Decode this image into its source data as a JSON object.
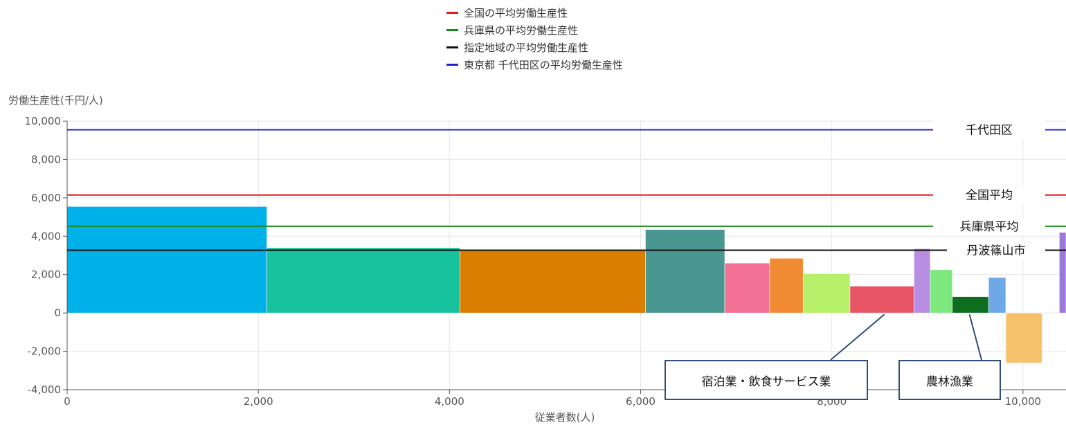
{
  "legend": [
    {
      "label": "全国の平均労働生産性",
      "color": "#e31a1c"
    },
    {
      "label": "兵庫県の平均労働生産性",
      "color": "#1a8a1a"
    },
    {
      "label": "指定地域の平均労働生産性",
      "color": "#111111"
    },
    {
      "label": "東京都 千代田区の平均労働生産性",
      "color": "#1f1fcc"
    }
  ],
  "chart_data": {
    "type": "bar",
    "subtype": "variable-width (marimekko)",
    "xlabel": "従業者数(人)",
    "ylabel": "労働生産性(千円/人)",
    "xlim": [
      0,
      10450
    ],
    "ylim": [
      -4000,
      10000
    ],
    "xticks": [
      0,
      2000,
      4000,
      6000,
      8000,
      10000
    ],
    "xtick_labels": [
      "0",
      "2,000",
      "4,000",
      "6,000",
      "8,000",
      "10,000"
    ],
    "yticks": [
      -4000,
      -2000,
      0,
      2000,
      4000,
      6000,
      8000,
      10000
    ],
    "ytick_labels": [
      "-4,000",
      "-2,000",
      "0",
      "2,000",
      "4,000",
      "6,000",
      "8,000",
      "10,000"
    ],
    "grid": true,
    "legend_position": "top-center",
    "bars": [
      {
        "x0": 0,
        "x1": 2090,
        "value": 5550,
        "color": "#00b0e8"
      },
      {
        "x0": 2090,
        "x1": 4110,
        "value": 3400,
        "color": "#17c39f"
      },
      {
        "x0": 4110,
        "x1": 6050,
        "value": 3250,
        "color": "#d97e00"
      },
      {
        "x0": 6050,
        "x1": 6880,
        "value": 4350,
        "color": "#4a9690"
      },
      {
        "x0": 6880,
        "x1": 7350,
        "value": 2600,
        "color": "#f27195"
      },
      {
        "x0": 7350,
        "x1": 7700,
        "value": 2850,
        "color": "#f08b33"
      },
      {
        "x0": 7700,
        "x1": 8190,
        "value": 2050,
        "color": "#b6f06a"
      },
      {
        "x0": 8190,
        "x1": 8860,
        "value": 1400,
        "color": "#e85566"
      },
      {
        "x0": 8860,
        "x1": 9030,
        "value": 3350,
        "color": "#b88ee2"
      },
      {
        "x0": 9030,
        "x1": 9260,
        "value": 2250,
        "color": "#7de87d"
      },
      {
        "x0": 9260,
        "x1": 9640,
        "value": 850,
        "color": "#0c6e1e"
      },
      {
        "x0": 9640,
        "x1": 9820,
        "value": 1850,
        "color": "#6fa8e6"
      },
      {
        "x0": 9820,
        "x1": 10200,
        "value": -2600,
        "color": "#f5c26b"
      },
      {
        "x0": 10380,
        "x1": 10450,
        "value": 4200,
        "color": "#9b79d9"
      }
    ],
    "reference_lines": [
      {
        "name": "東京都 千代田区の平均労働生産性",
        "value": 9550,
        "color": "#1f1fcc",
        "label": "千代田区"
      },
      {
        "name": "全国の平均労働生産性",
        "value": 6150,
        "color": "#e31a1c",
        "label": "全国平均"
      },
      {
        "name": "兵庫県の平均労働生産性",
        "value": 4520,
        "color": "#1a8a1a",
        "label": "兵庫県平均"
      },
      {
        "name": "指定地域の平均労働生産性",
        "value": 3270,
        "color": "#111111",
        "label": "丹波篠山市"
      }
    ],
    "callouts": [
      {
        "text": "宿泊業・飲食サービス業",
        "points_to_x": 8550
      },
      {
        "text": "農林漁業",
        "points_to_x": 9440
      }
    ]
  }
}
